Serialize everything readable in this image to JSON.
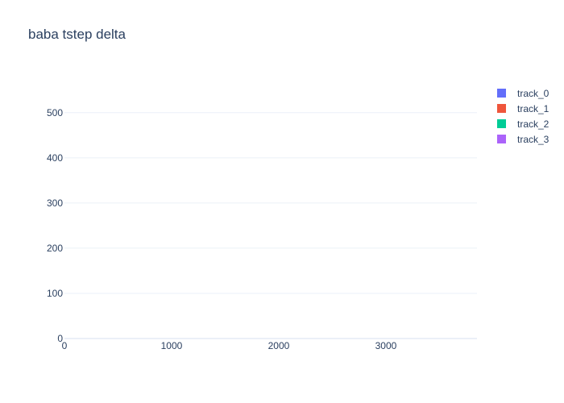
{
  "chart_data": {
    "type": "bar",
    "title": "baba tstep delta",
    "xlabel": "",
    "ylabel": "",
    "xlim": [
      0,
      3850
    ],
    "ylim": [
      0,
      505
    ],
    "x_ticks": [
      "0",
      "1000",
      "2000",
      "3000"
    ],
    "y_ticks": [
      "0",
      "100",
      "200",
      "300",
      "400",
      "500"
    ],
    "grid": true,
    "legend_position": "top-right",
    "series": [
      {
        "name": "track_0",
        "color": "#636efa",
        "values": []
      },
      {
        "name": "track_1",
        "color": "#ef553b",
        "values": []
      },
      {
        "name": "track_2",
        "color": "#00cc96",
        "values": []
      },
      {
        "name": "track_3",
        "color": "#ab63fa",
        "values": []
      }
    ]
  },
  "colors": {
    "text": "#2a3f5f",
    "grid": "#ebf0f8",
    "zeroline": "#ebf0f8"
  }
}
